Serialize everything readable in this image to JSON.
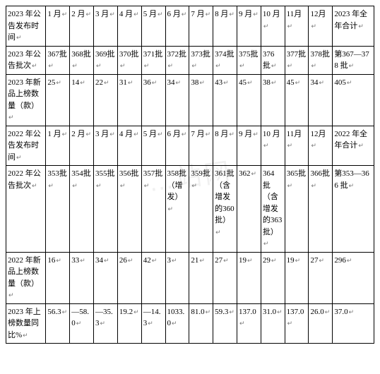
{
  "watermark": "…站网",
  "table": {
    "rows": [
      {
        "header": [
          "2023 年公告发布时间"
        ],
        "cells": [
          [
            "1 月"
          ],
          [
            "2 月"
          ],
          [
            "3 月"
          ],
          [
            "4 月"
          ],
          [
            "5 月"
          ],
          [
            "6 月"
          ],
          [
            "7 月"
          ],
          [
            "8 月"
          ],
          [
            "9 月"
          ],
          [
            "10 月"
          ],
          [
            "11月"
          ],
          [
            "12月"
          ],
          [
            "2023 年全年合计"
          ]
        ]
      },
      {
        "header": [
          "2023 年公告批次"
        ],
        "cells": [
          [
            "367批"
          ],
          [
            "368批"
          ],
          [
            "369批"
          ],
          [
            "370批"
          ],
          [
            "371批"
          ],
          [
            "372批"
          ],
          [
            "373批"
          ],
          [
            "374批"
          ],
          [
            "375批"
          ],
          [
            "376 批"
          ],
          [
            "377批"
          ],
          [
            "378批"
          ],
          [
            "第367—378 批"
          ]
        ]
      },
      {
        "header": [
          "2023 年新品上榜数量（款）"
        ],
        "cells": [
          [
            "25"
          ],
          [
            "14"
          ],
          [
            "22"
          ],
          [
            "31"
          ],
          [
            "36"
          ],
          [
            "34"
          ],
          [
            "38"
          ],
          [
            "43"
          ],
          [
            "45"
          ],
          [
            "38"
          ],
          [
            "45"
          ],
          [
            "34"
          ],
          [
            "405"
          ]
        ]
      },
      {
        "header": [
          "2022 年公告发布时间"
        ],
        "cells": [
          [
            "1 月"
          ],
          [
            "2 月"
          ],
          [
            "3 月"
          ],
          [
            "4 月"
          ],
          [
            "5 月"
          ],
          [
            "6 月"
          ],
          [
            "7 月"
          ],
          [
            "8 月"
          ],
          [
            "9 月"
          ],
          [
            "10 月"
          ],
          [
            "11月"
          ],
          [
            "12月"
          ],
          [
            "2022 年全年合计"
          ]
        ]
      },
      {
        "header": [
          "2022 年公告批次"
        ],
        "cells": [
          [
            "353批"
          ],
          [
            "354批"
          ],
          [
            "355批"
          ],
          [
            "356批"
          ],
          [
            "357批"
          ],
          [
            "358批（增发）"
          ],
          [
            "359批"
          ],
          [
            "361批（含增发的360批）"
          ],
          [
            "362"
          ],
          [
            "364 批（含增发的363批）"
          ],
          [
            "365批"
          ],
          [
            "366批"
          ],
          [
            "第353—366 批"
          ]
        ]
      },
      {
        "header": [
          "2022 年新品上榜数量（款）"
        ],
        "cells": [
          [
            "16"
          ],
          [
            "33"
          ],
          [
            "34"
          ],
          [
            "26"
          ],
          [
            "42"
          ],
          [
            "3"
          ],
          [
            "21"
          ],
          [
            "27"
          ],
          [
            "19"
          ],
          [
            "29"
          ],
          [
            "19"
          ],
          [
            "27"
          ],
          [
            "296"
          ]
        ]
      },
      {
        "header": [
          "2023 年上榜数量同比%"
        ],
        "cells": [
          [
            "56.3"
          ],
          [
            "—58.0"
          ],
          [
            "—35.3"
          ],
          [
            "19.2"
          ],
          [
            "—14.3"
          ],
          [
            "1033.0"
          ],
          [
            "81.0"
          ],
          [
            "59.3"
          ],
          [
            "137.0"
          ],
          [
            "31.0"
          ],
          [
            "137.0"
          ],
          [
            "26.0"
          ],
          [
            "37.0"
          ]
        ]
      }
    ],
    "colors": {
      "background": "#ffffff",
      "border": "#000000",
      "text": "#000000",
      "paramark": "#777777"
    },
    "fontsize_pt": 8
  }
}
